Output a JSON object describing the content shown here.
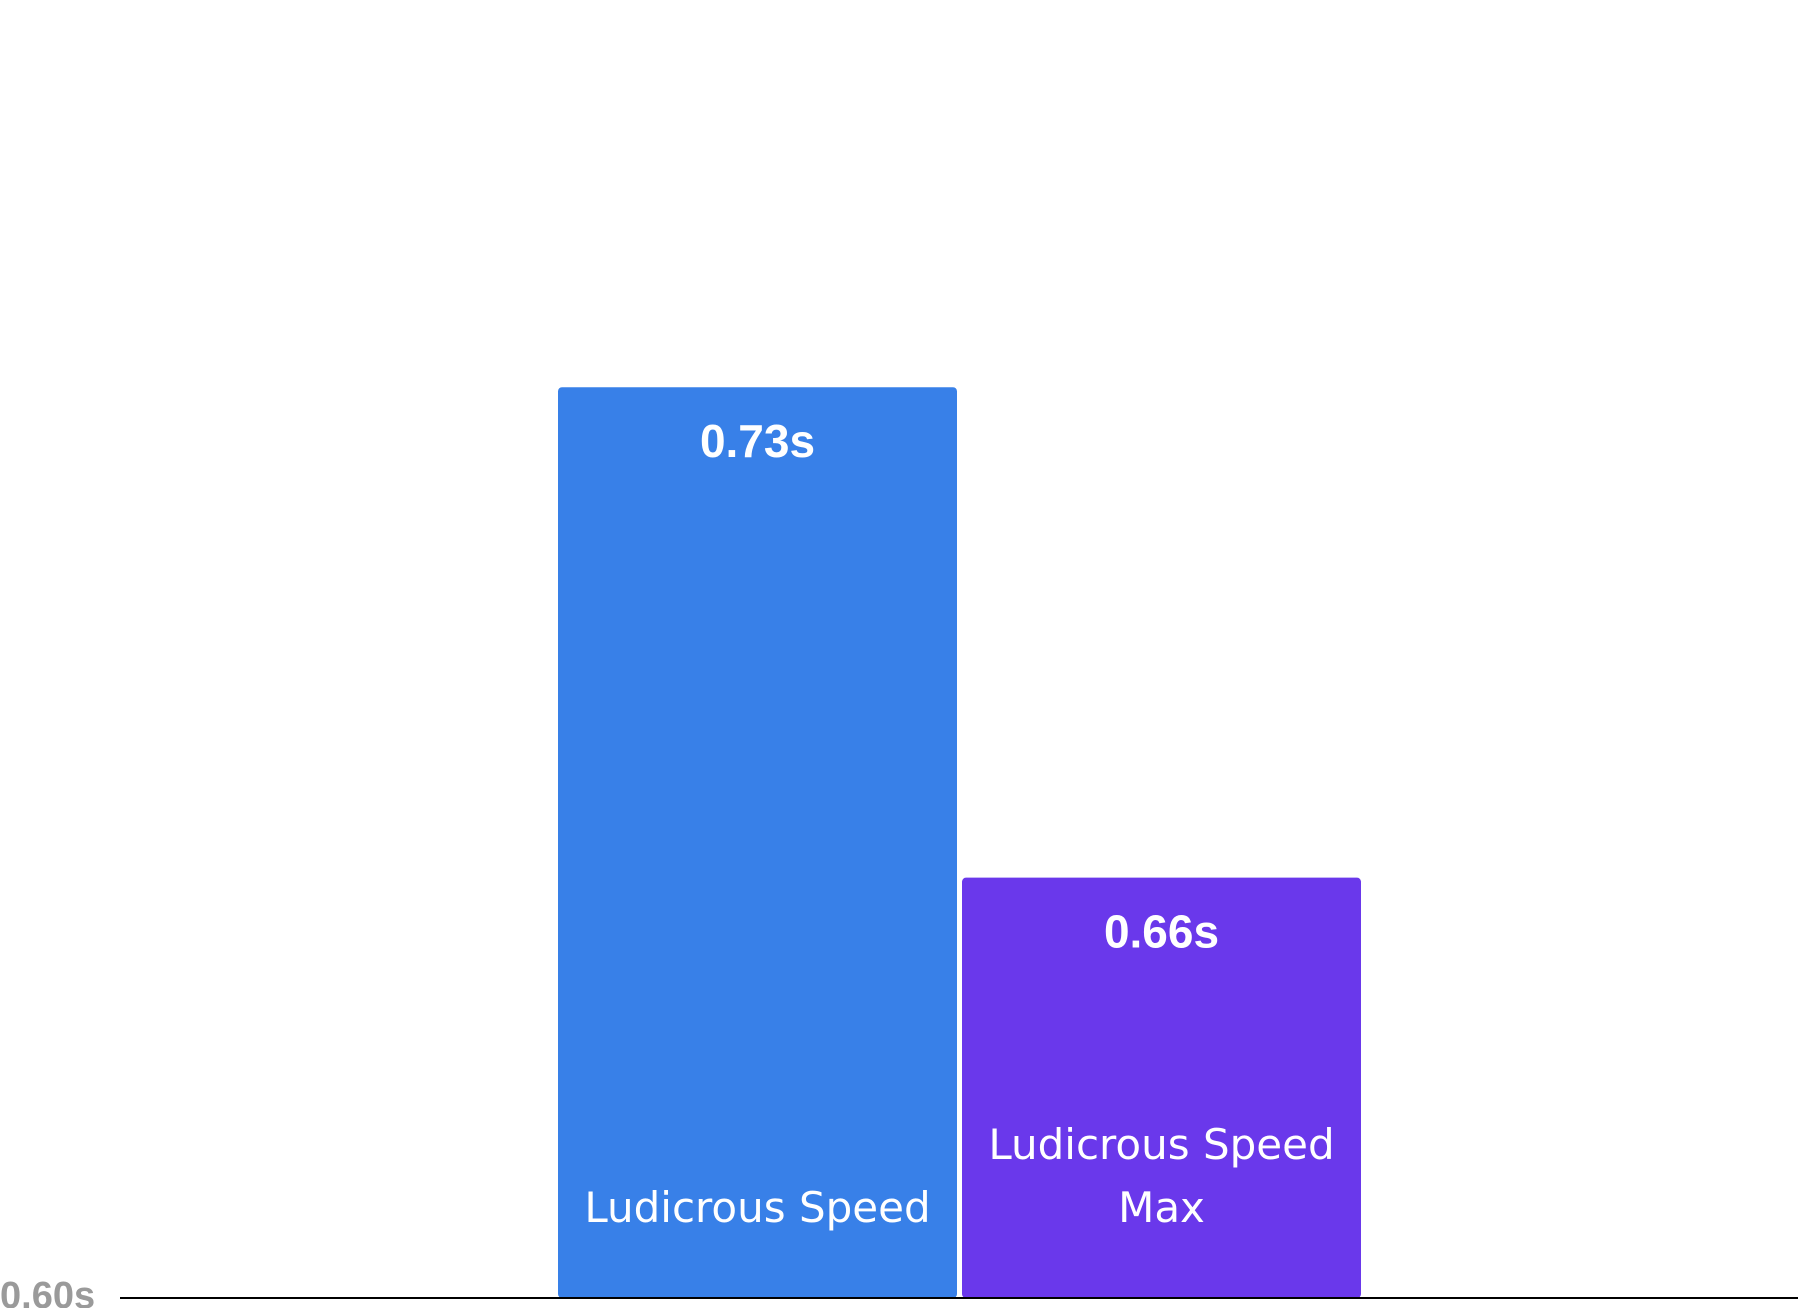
{
  "chart_data": {
    "type": "bar",
    "categories": [
      "Ludicrous Speed",
      "Ludicrous Speed Max"
    ],
    "category_lines": [
      [
        "Ludicrous Speed"
      ],
      [
        "Ludicrous Speed",
        "Max"
      ]
    ],
    "values": [
      0.73,
      0.66
    ],
    "value_labels": [
      "0.73s",
      "0.66s"
    ],
    "colors": [
      "#3880e8",
      "#6a38eb"
    ],
    "ylim": [
      0.6,
      0.77
    ],
    "yticks": [
      {
        "value": 0.6,
        "label": "0.60s"
      }
    ],
    "title": "",
    "xlabel": "",
    "ylabel": "",
    "grid": false,
    "legend": "none",
    "label_color": "#ffffff",
    "tick_color": "#9a9a9a",
    "axis_color": "#000000"
  }
}
